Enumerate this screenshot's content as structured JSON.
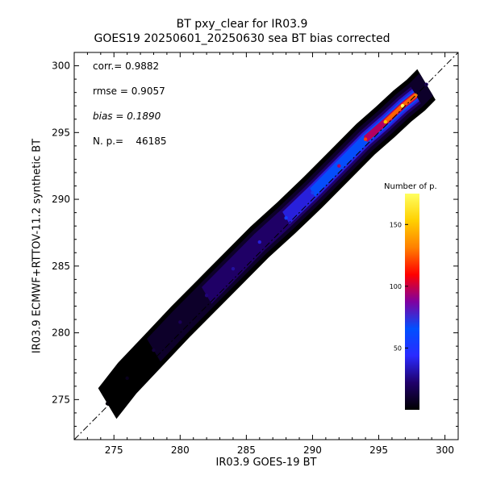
{
  "chart_data": {
    "type": "heatmap",
    "title": "BT pxy_clear for IR03.9",
    "subtitle": "GOES19 20250601_20250630 sea BT bias corrected",
    "xlabel": "IR03.9 GOES-19 BT",
    "ylabel": "IR03.9 ECMWF+RTTOV-11.2 synthetic BT",
    "xlim": [
      272,
      301
    ],
    "ylim": [
      272,
      301
    ],
    "x_ticks": [
      275,
      280,
      285,
      290,
      295,
      300
    ],
    "y_ticks": [
      275,
      280,
      285,
      290,
      295,
      300
    ],
    "reference_line": "1:1 dash-dot diagonal",
    "stats": {
      "corr": "corr.= 0.9882",
      "rmse": "rmse = 0.9057",
      "bias": "bias = 0.1890",
      "npoints": "N. p.=    46185"
    },
    "density_ridge": [
      {
        "x": 274.5,
        "y": 274.7,
        "density": 2
      },
      {
        "x": 276.0,
        "y": 276.6,
        "density": 6
      },
      {
        "x": 278.0,
        "y": 278.7,
        "density": 12
      },
      {
        "x": 280.0,
        "y": 280.8,
        "density": 18
      },
      {
        "x": 282.0,
        "y": 282.8,
        "density": 24
      },
      {
        "x": 284.0,
        "y": 284.8,
        "density": 30
      },
      {
        "x": 286.0,
        "y": 286.8,
        "density": 38
      },
      {
        "x": 288.0,
        "y": 288.6,
        "density": 55
      },
      {
        "x": 290.0,
        "y": 290.5,
        "density": 70
      },
      {
        "x": 292.0,
        "y": 292.5,
        "density": 95
      },
      {
        "x": 294.0,
        "y": 294.5,
        "density": 120
      },
      {
        "x": 295.5,
        "y": 295.8,
        "density": 150
      },
      {
        "x": 296.8,
        "y": 297.0,
        "density": 175
      },
      {
        "x": 297.8,
        "y": 297.8,
        "density": 130
      },
      {
        "x": 298.6,
        "y": 298.6,
        "density": 20
      }
    ],
    "colorbar": {
      "title": "Number of p.",
      "ticks": [
        50,
        100,
        150
      ],
      "range": [
        0,
        175
      ],
      "colors": [
        "#000000",
        "#20006a",
        "#2a2aff",
        "#0050ff",
        "#8000a0",
        "#ff0000",
        "#ff8000",
        "#ffd000",
        "#ffff60"
      ]
    }
  }
}
